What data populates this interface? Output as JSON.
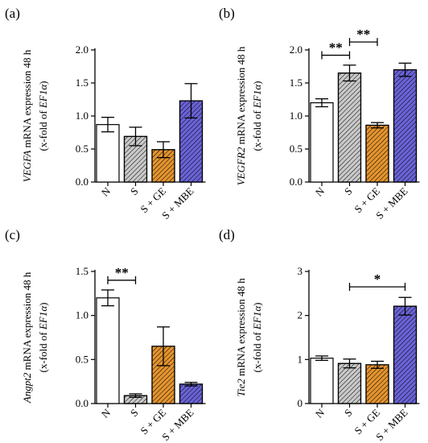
{
  "hatch_color": "#000000",
  "chart_data": [
    {
      "type": "bar",
      "panel_label": "(a)",
      "categories": [
        "N",
        "S",
        "S + GE",
        "S + MBE"
      ],
      "values": [
        0.87,
        0.69,
        0.49,
        1.23
      ],
      "errors": [
        0.11,
        0.14,
        0.12,
        0.26
      ],
      "colors": [
        "#ffffff",
        "#c9c9c9",
        "#e4942f",
        "#6a63d6"
      ],
      "hatched": [
        false,
        true,
        true,
        true
      ],
      "ylabel_gene": "VEGFA",
      "ylabel_rest": " mRNA expression 48 h",
      "ylabel2_pre": "(x-fold of ",
      "ylabel2_ref": "EF1α",
      "ylabel2_post": ")",
      "ylim": [
        0,
        2.0
      ],
      "yticks": [
        "0.0",
        "0.5",
        "1.0",
        "1.5",
        "2.0"
      ],
      "significance": []
    },
    {
      "type": "bar",
      "panel_label": "(b)",
      "categories": [
        "N",
        "S",
        "S + GE",
        "S + MBE"
      ],
      "values": [
        1.2,
        1.65,
        0.86,
        1.7
      ],
      "errors": [
        0.06,
        0.12,
        0.04,
        0.1
      ],
      "colors": [
        "#ffffff",
        "#c9c9c9",
        "#e4942f",
        "#6a63d6"
      ],
      "hatched": [
        false,
        true,
        true,
        true
      ],
      "ylabel_gene": "VEGFR2",
      "ylabel_rest": " mRNA expression 48 h",
      "ylabel2_pre": "(x-fold of ",
      "ylabel2_ref": "EF1α",
      "ylabel2_post": ")",
      "ylim": [
        0,
        2.0
      ],
      "yticks": [
        "0.0",
        "0.5",
        "1.0",
        "1.5",
        "2.0"
      ],
      "significance": [
        {
          "from": 0,
          "to": 1,
          "y": 1.92,
          "label": "**"
        },
        {
          "from": 1,
          "to": 2,
          "y": 2.12,
          "label": "**"
        }
      ]
    },
    {
      "type": "bar",
      "panel_label": "(c)",
      "categories": [
        "N",
        "S",
        "S + GE",
        "S + MBE"
      ],
      "values": [
        1.2,
        0.09,
        0.65,
        0.22
      ],
      "errors": [
        0.09,
        0.02,
        0.22,
        0.02
      ],
      "colors": [
        "#ffffff",
        "#c9c9c9",
        "#e4942f",
        "#6a63d6"
      ],
      "hatched": [
        false,
        true,
        true,
        true
      ],
      "ylabel_gene": "Angpt2",
      "ylabel_rest": " mRNA expression 48 h",
      "ylabel2_pre": "(x-fold of ",
      "ylabel2_ref": "EF1α",
      "ylabel2_post": ")",
      "ylim": [
        0,
        1.5
      ],
      "yticks": [
        "0.0",
        "0.5",
        "1.0",
        "1.5"
      ],
      "significance": [
        {
          "from": 0,
          "to": 1,
          "y": 1.4,
          "label": "**"
        }
      ]
    },
    {
      "type": "bar",
      "panel_label": "(d)",
      "categories": [
        "N",
        "S",
        "S + GE",
        "S + MBE"
      ],
      "values": [
        1.03,
        0.91,
        0.88,
        2.21
      ],
      "errors": [
        0.05,
        0.1,
        0.08,
        0.2
      ],
      "colors": [
        "#ffffff",
        "#c9c9c9",
        "#e4942f",
        "#6a63d6"
      ],
      "hatched": [
        false,
        true,
        true,
        true
      ],
      "ylabel_gene": "Tie2",
      "ylabel_rest": " mRNA expression 48 h",
      "ylabel2_pre": "(x-fold of ",
      "ylabel2_ref": "EF1α",
      "ylabel2_post": ")",
      "ylim": [
        0,
        3
      ],
      "yticks": [
        "0",
        "1",
        "2",
        "3"
      ],
      "significance": [
        {
          "from": 1,
          "to": 3,
          "y": 2.65,
          "label": "*"
        }
      ]
    }
  ]
}
